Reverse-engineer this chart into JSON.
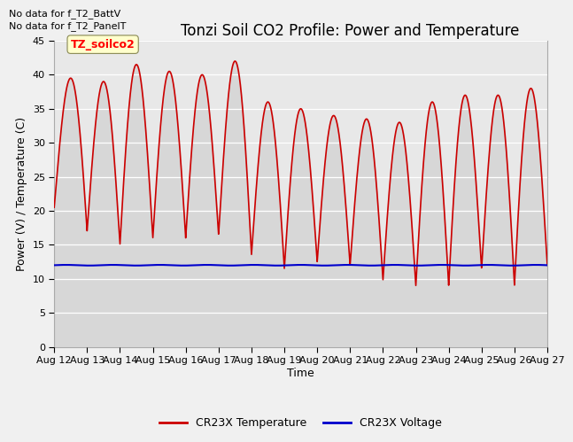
{
  "title": "Tonzi Soil CO2 Profile: Power and Temperature",
  "ylabel": "Power (V) / Temperature (C)",
  "xlabel": "Time",
  "no_data_text": [
    "No data for f_T2_BattV",
    "No data for f_T2_PanelT"
  ],
  "legend_box_label": "TZ_soilco2",
  "ylim": [
    0,
    45
  ],
  "yticks": [
    0,
    5,
    10,
    15,
    20,
    25,
    30,
    35,
    40,
    45
  ],
  "x_labels": [
    "Aug 12",
    "Aug 13",
    "Aug 14",
    "Aug 15",
    "Aug 16",
    "Aug 17",
    "Aug 18",
    "Aug 19",
    "Aug 20",
    "Aug 21",
    "Aug 22",
    "Aug 23",
    "Aug 24",
    "Aug 25",
    "Aug 26",
    "Aug 27"
  ],
  "temp_color": "#cc0000",
  "volt_color": "#0000cc",
  "plot_bg_color": "#e8e8e8",
  "fig_bg_color": "#f0f0f0",
  "fill_color": "#d0d0d0",
  "legend_label_temp": "CR23X Temperature",
  "legend_label_volt": "CR23X Voltage",
  "voltage_level": 12.0,
  "title_fontsize": 12,
  "axis_label_fontsize": 9,
  "tick_fontsize": 8,
  "nodata_fontsize": 8,
  "peaks": [
    39.5,
    39.0,
    41.5,
    40.5,
    40.0,
    42.0,
    36.0,
    35.0,
    34.0,
    33.5,
    33.0,
    36.0,
    37.0,
    37.0,
    38.0
  ],
  "troughs": [
    20.5,
    17.0,
    15.0,
    16.0,
    16.0,
    16.5,
    13.5,
    11.5,
    12.5,
    12.0,
    9.8,
    9.0,
    9.0,
    11.5,
    9.0,
    12.0
  ]
}
